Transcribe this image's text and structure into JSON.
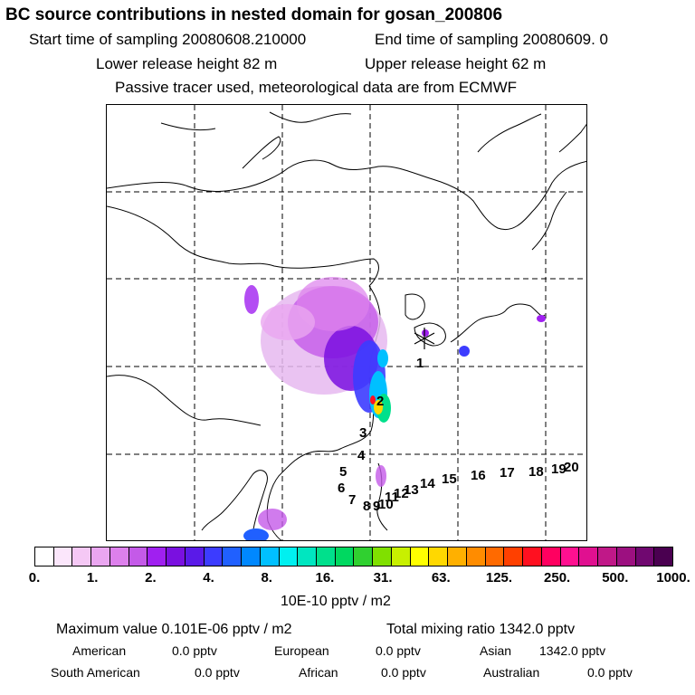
{
  "title": "BC  source contributions in nested domain for gosan_200806",
  "header": {
    "start_label": "Start time of sampling 20080608.210000",
    "end_label": "End time of sampling 20080609.     0",
    "lower_label": "Lower release height   82 m",
    "upper_label": "Upper release height   62 m",
    "tracer_label": "Passive tracer used, meteorological data are from ECMWF"
  },
  "trajectory_labels": [
    "1",
    "2",
    "3",
    "4",
    "5",
    "6",
    "7",
    "8",
    "9",
    "10",
    "11",
    "12",
    "13",
    "14",
    "15",
    "16",
    "17",
    "18",
    "19",
    "20"
  ],
  "colorbar": {
    "ticks": [
      "0.",
      "1.",
      "2.",
      "4.",
      "8.",
      "16.",
      "31.",
      "63.",
      "125.",
      "250.",
      "500.",
      "1000."
    ],
    "colors": [
      "#ffffff",
      "#fbe6fb",
      "#f5c8f5",
      "#eaa6f0",
      "#dd80ec",
      "#c45ae8",
      "#a020f0",
      "#7a10e0",
      "#5a1ae8",
      "#3c3cff",
      "#2060ff",
      "#0088ff",
      "#00c0ff",
      "#00f0f0",
      "#00e6c0",
      "#00e08c",
      "#00d860",
      "#30d030",
      "#80e000",
      "#c8f000",
      "#ffff00",
      "#ffd800",
      "#ffb000",
      "#ff8c00",
      "#ff6a00",
      "#ff4000",
      "#ff1020",
      "#ff0060",
      "#ff1090",
      "#e01090",
      "#c01888",
      "#9c1080",
      "#700870",
      "#4a0050"
    ],
    "units": "10E-10 pptv / m2"
  },
  "footer": {
    "max_label": "Maximum value  0.101E-06 pptv / m2",
    "total_label": "Total mixing ratio     1342.0 pptv",
    "american_label": "American",
    "american_value": "0.0 pptv",
    "european_label": "European",
    "european_value": "0.0 pptv",
    "asian_label": "Asian",
    "asian_value": "1342.0 pptv",
    "south_american_label": "South American",
    "south_american_value": "0.0 pptv",
    "african_label": "African",
    "african_value": "0.0 pptv",
    "australian_label": "Australian",
    "australian_value": "0.0 pptv"
  }
}
